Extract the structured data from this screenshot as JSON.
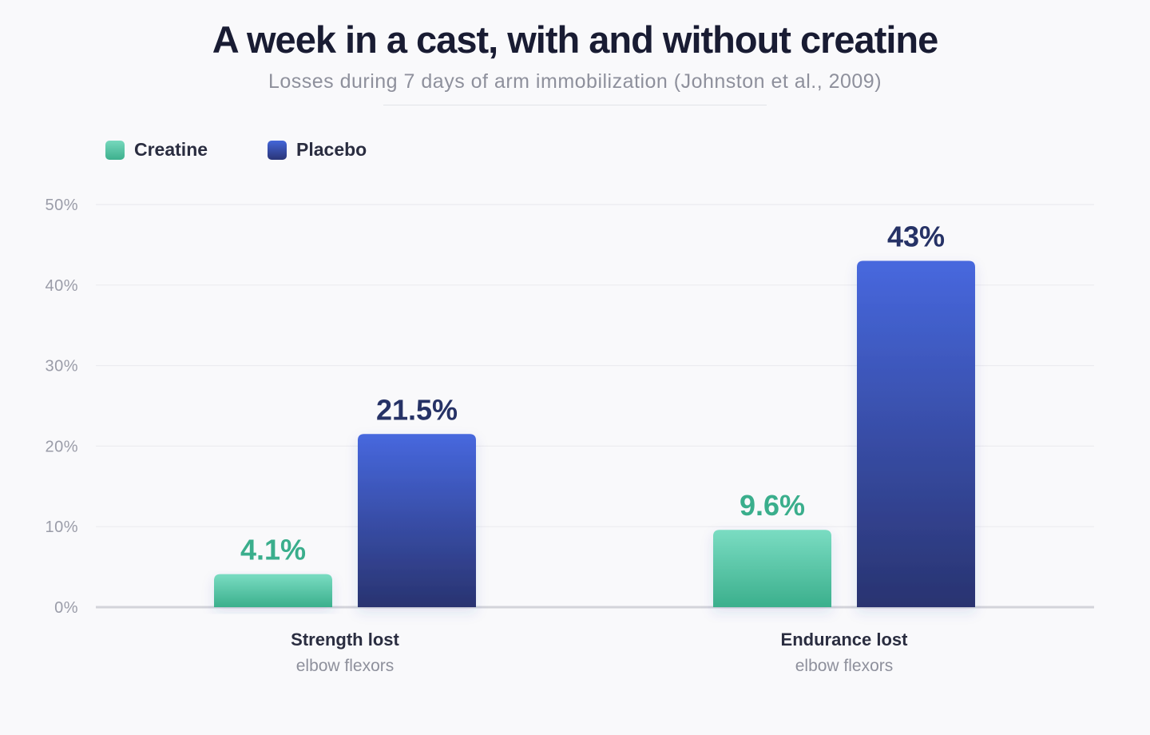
{
  "header": {
    "title": "A week in a cast, with and without creatine",
    "subtitle": "Losses during 7 days of arm immobilization (Johnston et al., 2009)"
  },
  "legend": [
    {
      "label": "Creatine",
      "color": "#4cc2a0"
    },
    {
      "label": "Placebo",
      "color": "#3547a8"
    }
  ],
  "chart_data": {
    "type": "bar",
    "title": "A week in a cast, with and without creatine",
    "subtitle": "Losses during 7 days of arm immobilization (Johnston et al., 2009)",
    "categories": [
      "Strength lost",
      "Endurance lost"
    ],
    "category_subtitles": [
      "elbow flexors",
      "elbow flexors"
    ],
    "series": [
      {
        "name": "Creatine",
        "values": [
          4.1,
          9.6
        ],
        "value_labels": [
          "4.1%",
          "9.6%"
        ],
        "color": "#4cc2a0",
        "label_color": "#3aae8c"
      },
      {
        "name": "Placebo",
        "values": [
          21.5,
          43
        ],
        "value_labels": [
          "21.5%",
          "43%"
        ],
        "color": "#3547a8",
        "label_color": "#263266"
      }
    ],
    "ylim": [
      0,
      50
    ],
    "y_ticks": [
      0,
      10,
      20,
      30,
      40,
      50
    ],
    "y_tick_labels": [
      "0%",
      "10%",
      "20%",
      "30%",
      "40%",
      "50%"
    ],
    "grid": true,
    "legend_position": "top-left"
  }
}
